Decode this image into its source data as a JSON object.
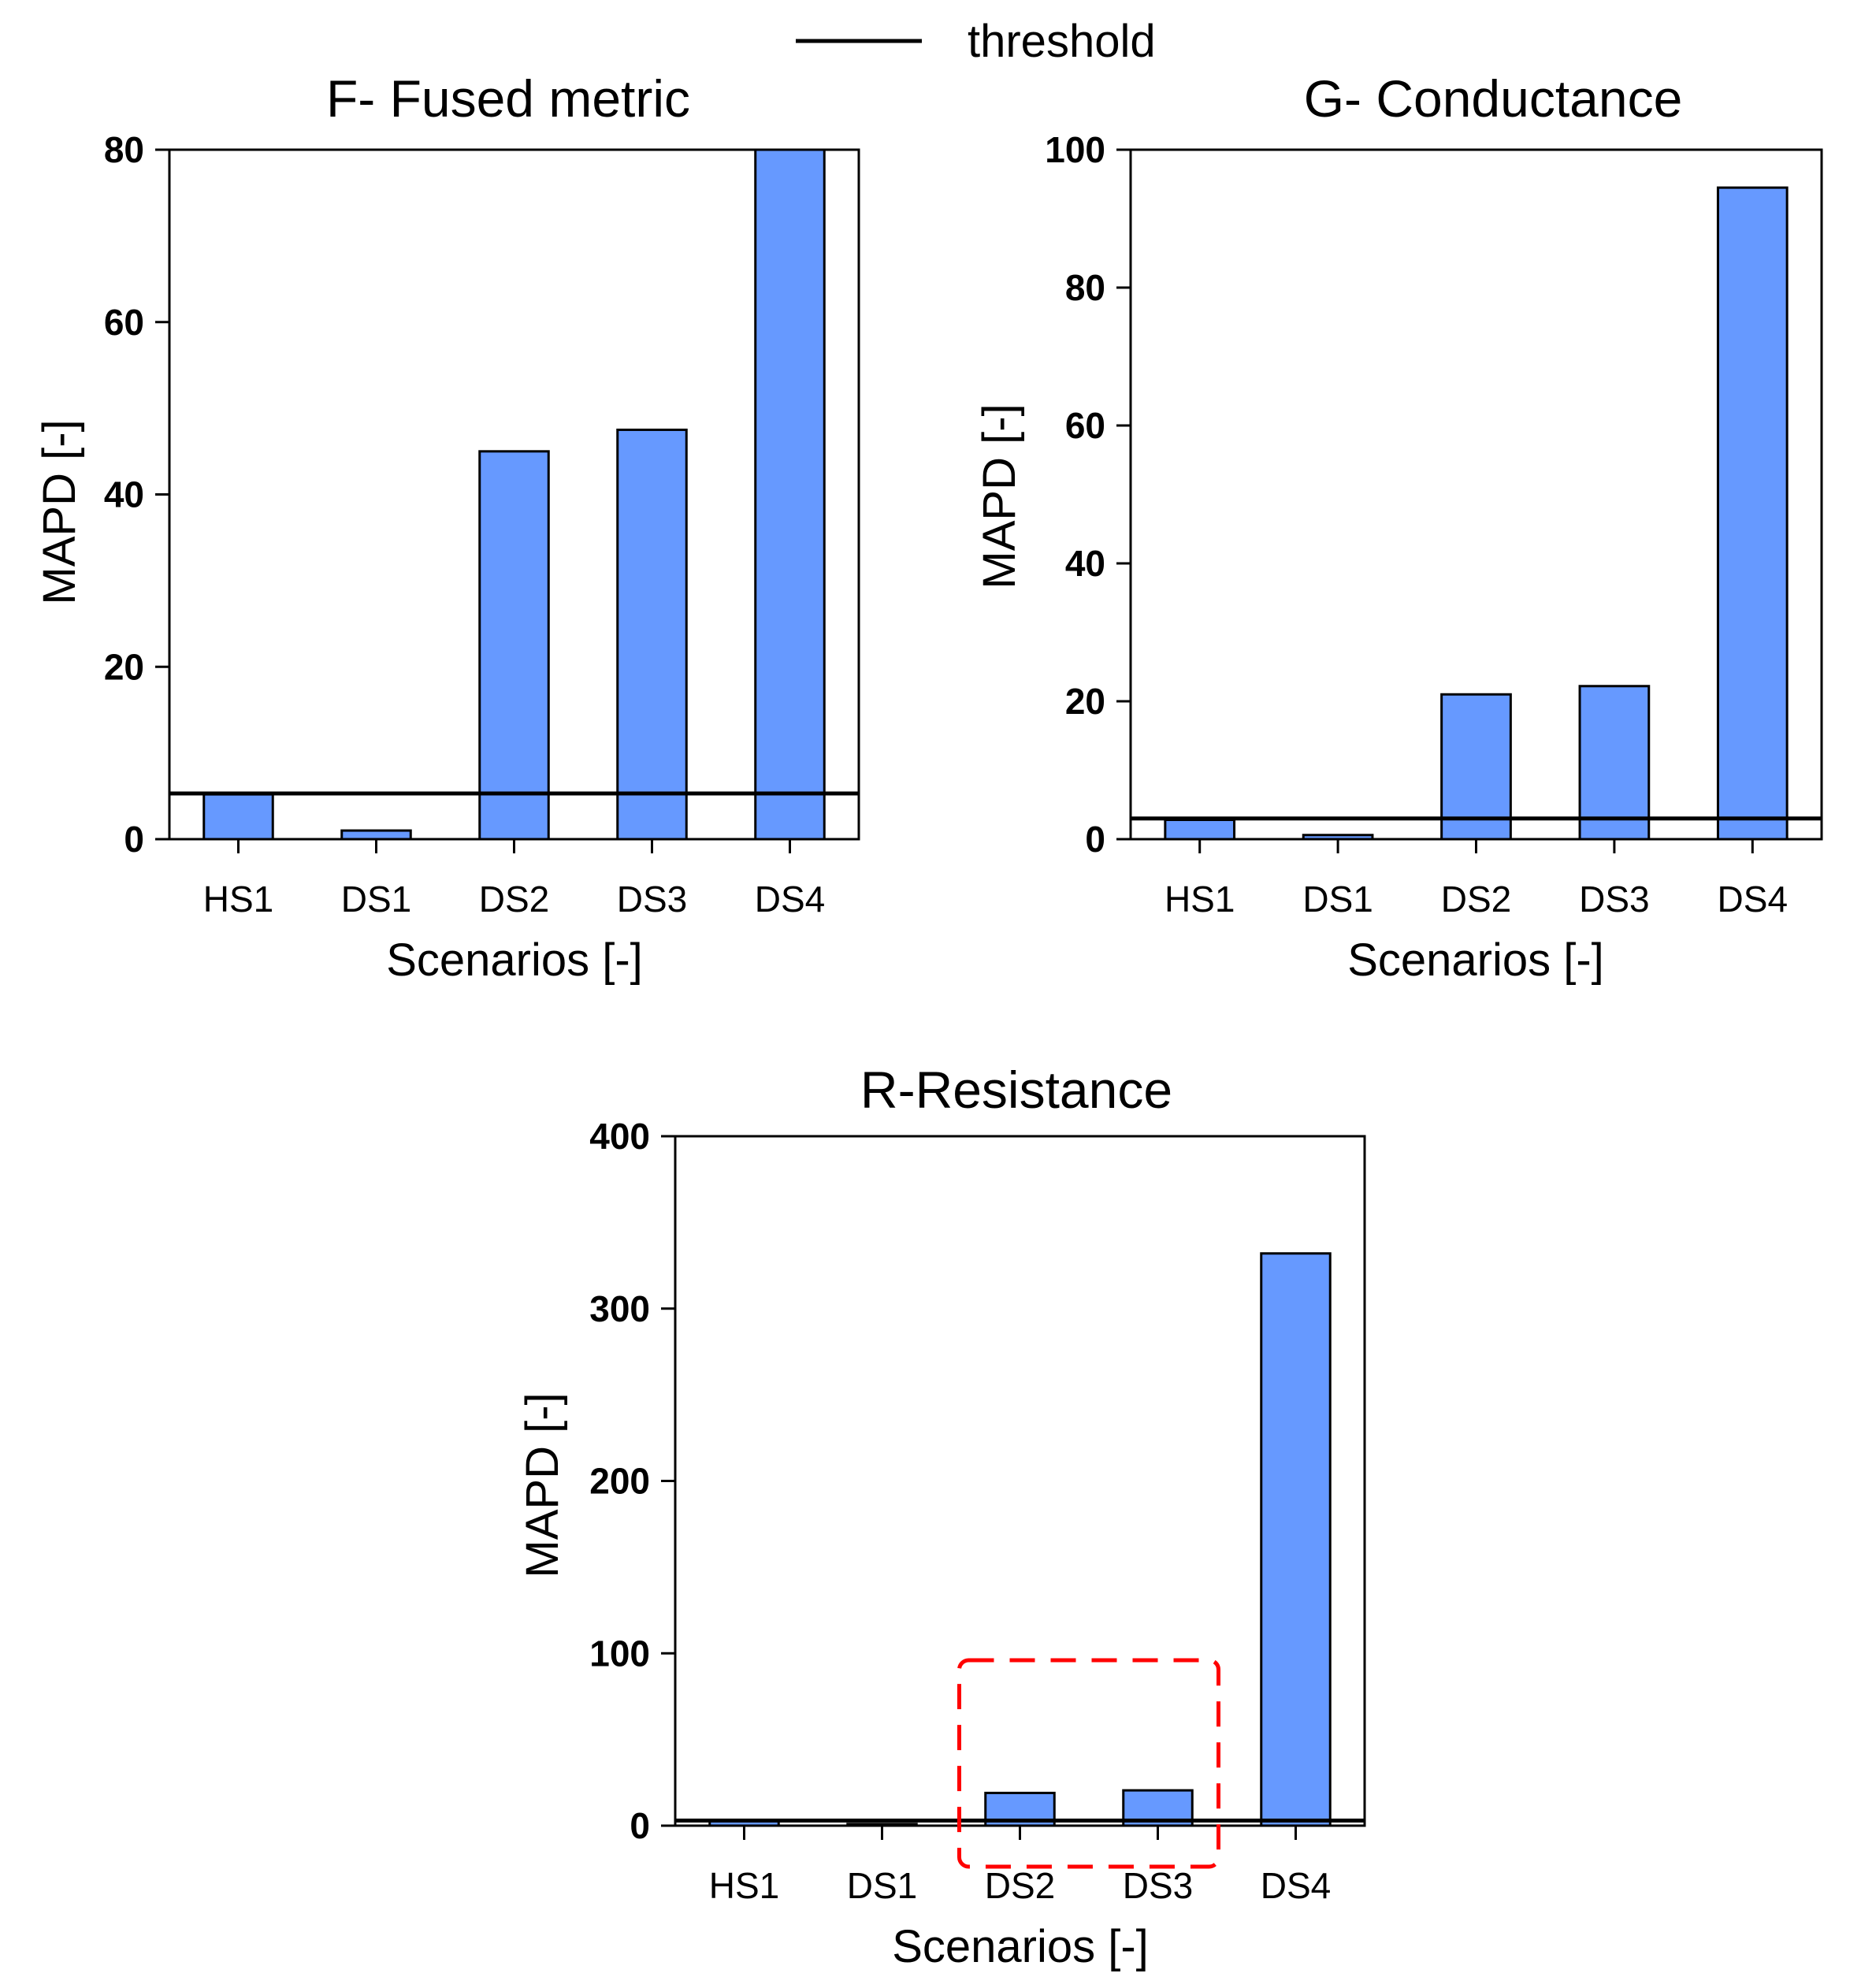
{
  "legend": {
    "label": "threshold",
    "color": "#000000"
  },
  "chart_data": [
    {
      "type": "bar",
      "title": "F- Fused metric",
      "xlabel": "Scenarios [-]",
      "ylabel": "MAPD [-]",
      "categories": [
        "HS1",
        "DS1",
        "DS2",
        "DS3",
        "DS4"
      ],
      "values": [
        5.2,
        1.0,
        45,
        47.5,
        80
      ],
      "ylim": [
        0,
        80
      ],
      "yticks": [
        "0",
        "20",
        "40",
        "60",
        "80"
      ],
      "threshold": 5.3,
      "bar_color": "#6699ff"
    },
    {
      "type": "bar",
      "title": "G- Conductance",
      "xlabel": "Scenarios [-]",
      "ylabel": "MAPD [-]",
      "categories": [
        "HS1",
        "DS1",
        "DS2",
        "DS3",
        "DS4"
      ],
      "values": [
        2.8,
        0.6,
        21,
        22.2,
        94.5
      ],
      "ylim": [
        0,
        100
      ],
      "yticks": [
        "0",
        "20",
        "40",
        "60",
        "80",
        "100"
      ],
      "threshold": 3.0,
      "bar_color": "#6699ff"
    },
    {
      "type": "bar",
      "title": "R-Resistance",
      "xlabel": "Scenarios [-]",
      "ylabel": "MAPD [-]",
      "categories": [
        "HS1",
        "DS1",
        "DS2",
        "DS3",
        "DS4"
      ],
      "values": [
        3.0,
        1.0,
        19,
        20.5,
        332
      ],
      "ylim": [
        0,
        400
      ],
      "yticks": [
        "0",
        "100",
        "200",
        "300",
        "400"
      ],
      "threshold": 3.0,
      "bar_color": "#6699ff",
      "highlight": {
        "from_category": "DS2",
        "to_category": "DS3",
        "color": "#ff0000",
        "style": "dashed"
      }
    }
  ]
}
